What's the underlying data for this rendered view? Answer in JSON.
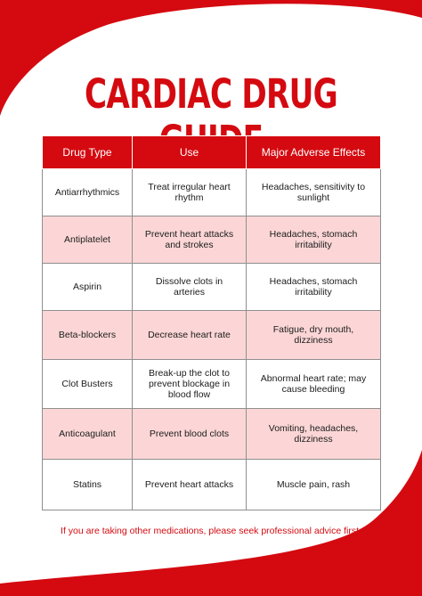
{
  "title": "CARDIAC DRUG GUIDE",
  "colors": {
    "accent": "#d40a10",
    "row_alt": "#fcd6d6",
    "background": "#ffffff"
  },
  "table": {
    "headers": [
      "Drug Type",
      "Use",
      "Major Adverse Effects"
    ],
    "rows": [
      [
        "Antiarrhythmics",
        "Treat irregular heart rhythm",
        "Headaches, sensitivity to sunlight"
      ],
      [
        "Antiplatelet",
        "Prevent heart attacks and strokes",
        "Headaches, stomach irritability"
      ],
      [
        "Aspirin",
        "Dissolve clots in arteries",
        "Headaches, stomach irritability"
      ],
      [
        "Beta-blockers",
        "Decrease heart rate",
        "Fatigue, dry mouth, dizziness"
      ],
      [
        "Clot Busters",
        "Break-up the clot to prevent blockage in blood flow",
        "Abnormal heart rate; may cause bleeding"
      ],
      [
        "Anticoagulant",
        "Prevent blood clots",
        "Vomiting, headaches, dizziness"
      ],
      [
        "Statins",
        "Prevent heart attacks",
        "Muscle pain, rash"
      ]
    ]
  },
  "footnote": "If you are taking other medications, please seek professional advice first."
}
